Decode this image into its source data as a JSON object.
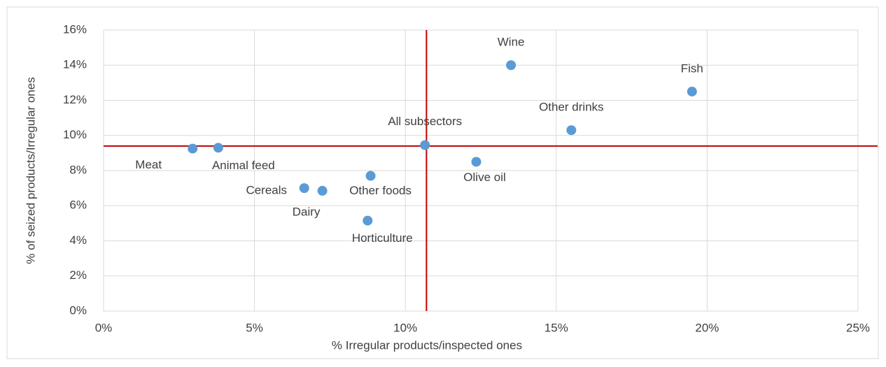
{
  "chart_data": {
    "type": "scatter",
    "labels": [
      "Meat",
      "Animal feed",
      "Cereals",
      "Dairy",
      "Other foods",
      "Horticulture",
      "All subsectors",
      "Olive oil",
      "Wine",
      "Other drinks",
      "Fish"
    ],
    "x": [
      2.95,
      3.8,
      6.65,
      7.25,
      8.85,
      8.75,
      10.65,
      12.35,
      13.5,
      15.5,
      19.5
    ],
    "values": [
      9.25,
      9.3,
      7.0,
      6.85,
      7.7,
      5.15,
      9.45,
      8.5,
      14.0,
      10.3,
      12.5
    ],
    "color": "#5b9bd5",
    "xlim": [
      0,
      25
    ],
    "ylim": [
      0,
      16
    ],
    "xticks": [
      {
        "value": 0,
        "label": "0%"
      },
      {
        "value": 5,
        "label": "5%"
      },
      {
        "value": 10,
        "label": "10%"
      },
      {
        "value": 15,
        "label": "15%"
      },
      {
        "value": 20,
        "label": "20%"
      },
      {
        "value": 25,
        "label": "25%"
      }
    ],
    "yticks": [
      {
        "value": 0,
        "label": "0%"
      },
      {
        "value": 2,
        "label": "2%"
      },
      {
        "value": 4,
        "label": "4%"
      },
      {
        "value": 6,
        "label": "6%"
      },
      {
        "value": 8,
        "label": "8%"
      },
      {
        "value": 10,
        "label": "10%"
      },
      {
        "value": 12,
        "label": "12%"
      },
      {
        "value": 14,
        "label": "14%"
      },
      {
        "value": 16,
        "label": "16%"
      }
    ],
    "grid": true,
    "reference_lines": {
      "x": 10.7,
      "y": 9.4,
      "color": "#c00000"
    },
    "x_label": "% Irregular products/inspected ones",
    "y_label": "% of seized products/Irregular ones"
  }
}
